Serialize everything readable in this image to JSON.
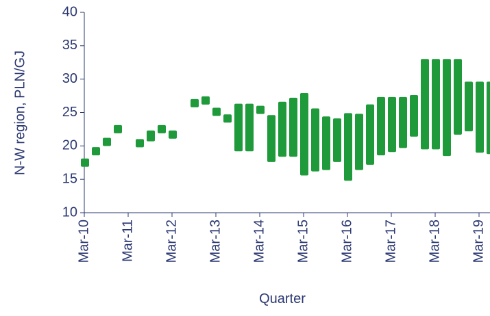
{
  "chart_data": {
    "type": "range_bar",
    "y_label": "N-W region, PLN/GJ",
    "x_label": "Quarter",
    "categories": [
      "Mar-10",
      null,
      null,
      null,
      "Mar-11",
      null,
      null,
      null,
      "Mar-12",
      null,
      null,
      null,
      "Mar-13",
      null,
      null,
      null,
      "Mar-14",
      null,
      null,
      null,
      "Mar-15",
      null,
      null,
      null,
      "Mar-16",
      null,
      null,
      null,
      "Mar-17",
      null,
      null,
      null,
      "Mar-18",
      null,
      null,
      null,
      "Mar-19",
      null
    ],
    "series": [
      {
        "color": "#1f9a3a",
        "low": [
          17.5,
          19.2,
          20.6,
          22.5,
          null,
          20.4,
          21.3,
          22.5,
          21.7,
          null,
          26.4,
          26.8,
          25.1,
          24.1,
          19.8,
          19.8,
          25.4,
          18.2,
          19.0,
          19.0,
          16.2,
          16.8,
          17.0,
          18.2,
          15.4,
          17.0,
          17.8,
          19.2,
          19.7,
          20.3,
          22.0,
          20.1,
          20.1,
          19.1,
          22.3,
          22.8,
          19.6,
          19.4
        ],
        "high": [
          17.5,
          19.2,
          20.6,
          22.5,
          null,
          20.4,
          21.7,
          22.5,
          21.7,
          null,
          26.4,
          26.8,
          25.1,
          24.1,
          25.7,
          25.7,
          25.4,
          24.0,
          26.0,
          26.6,
          27.3,
          25.0,
          23.8,
          23.5,
          24.3,
          24.2,
          25.6,
          26.7,
          26.7,
          26.7,
          27.0,
          32.4,
          32.4,
          32.4,
          32.4,
          29.0,
          29.0,
          29.0
        ]
      }
    ],
    "ylim": [
      10,
      40
    ],
    "yticks": [
      10,
      15,
      20,
      25,
      30,
      35,
      40
    ]
  }
}
